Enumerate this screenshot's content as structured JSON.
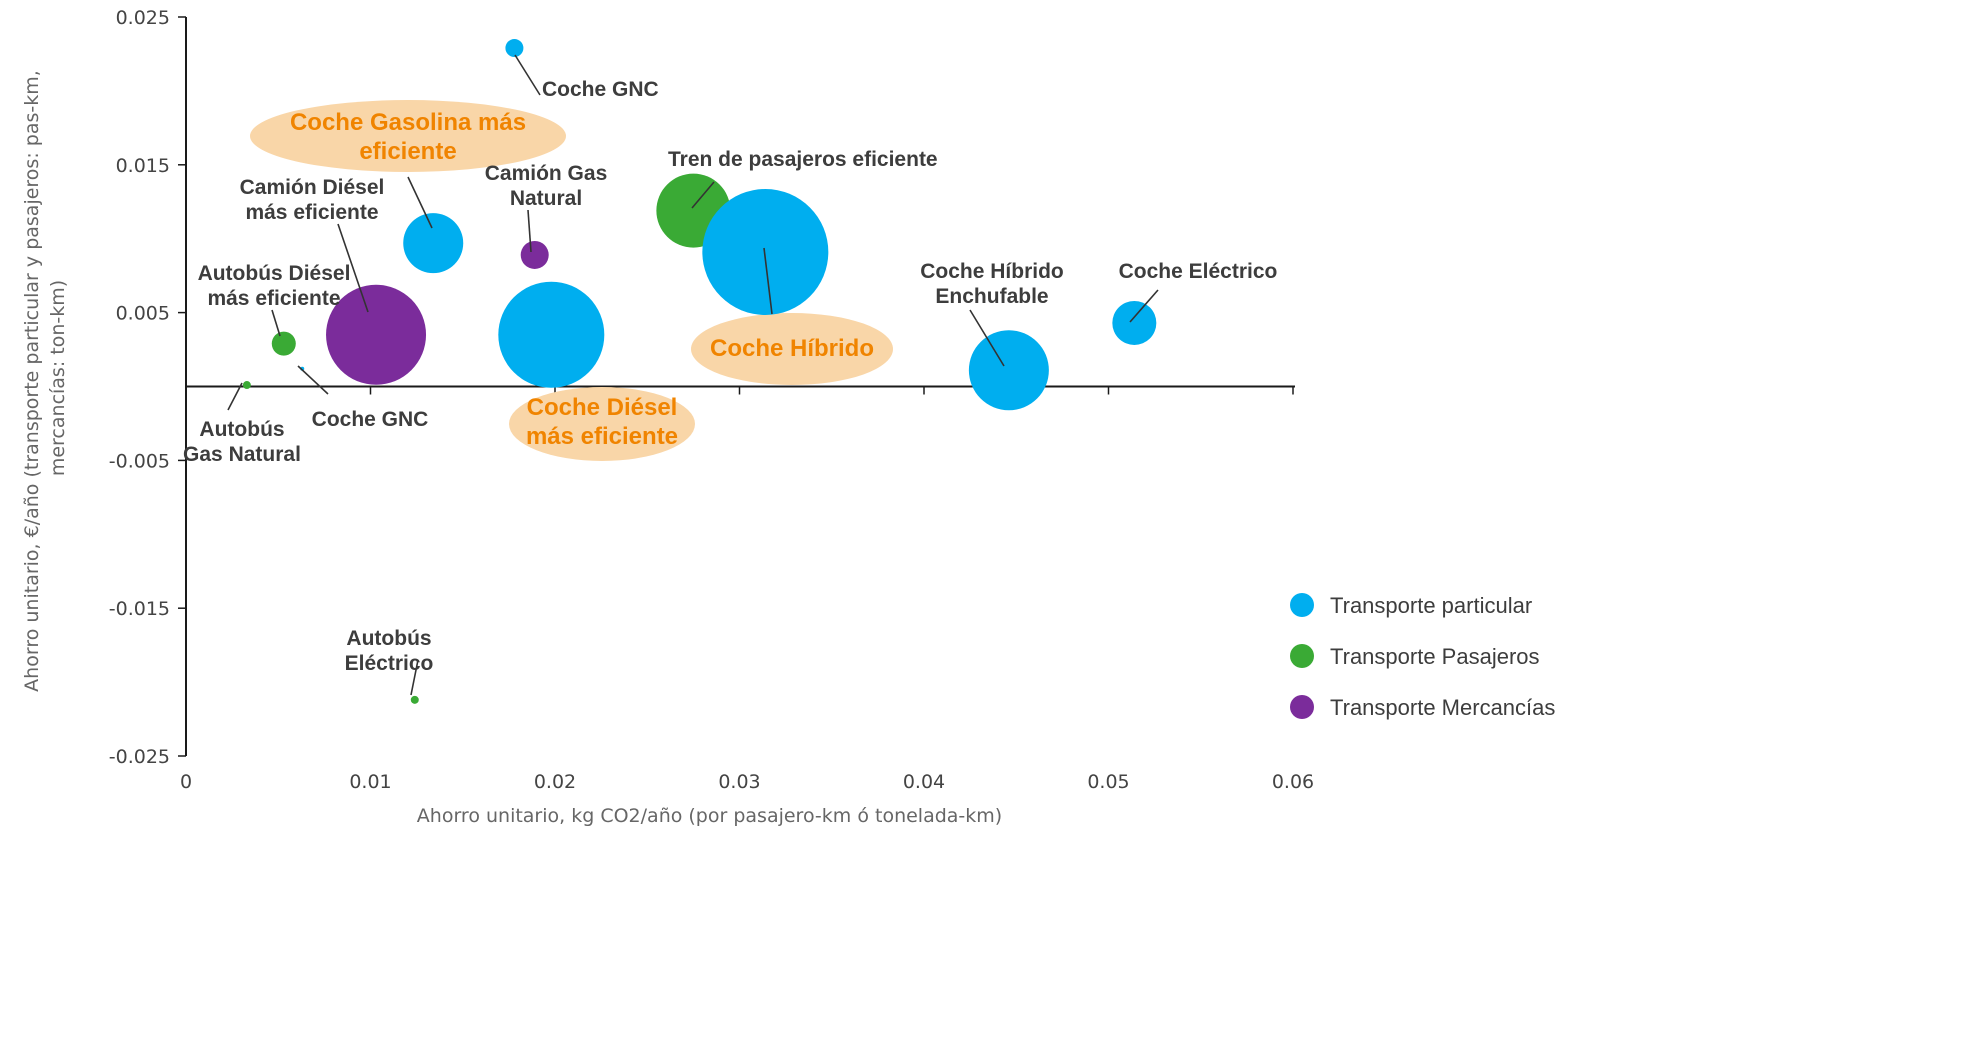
{
  "chart_data": {
    "type": "bubble",
    "xlabel": "Ahorro unitario, kg CO2/año (por pasajero-km ó tonelada-km)",
    "ylabel_lines": [
      "Ahorro unitario, €/año (transporte particular y pasajeros: pas-km,",
      "mercancías: ton-km)"
    ],
    "xlim": [
      0,
      0.06
    ],
    "ylim": [
      -0.025,
      0.025
    ],
    "x_ticks": [
      "0",
      "0.01",
      "0.02",
      "0.03",
      "0.04",
      "0.05",
      "0.06"
    ],
    "x_tick_values": [
      0,
      0.01,
      0.02,
      0.03,
      0.04,
      0.05,
      0.06
    ],
    "y_ticks": [
      "0.025",
      "0.015",
      "0.005",
      "-0.005",
      "-0.015",
      "-0.025"
    ],
    "y_tick_values": [
      0.025,
      0.015,
      0.005,
      -0.005,
      -0.015,
      -0.025
    ],
    "colors": {
      "Transporte particular": "#00aeef",
      "Transporte Pasajeros": "#3aaa35",
      "Transporte Mercancías": "#7b2c9b",
      "highlight_fill": "#f9d6a8",
      "highlight_text": "#f08400"
    },
    "legend": {
      "position": "right",
      "entries": [
        "Transporte particular",
        "Transporte Pasajeros",
        "Transporte Mercancías"
      ]
    },
    "points": [
      {
        "label": "Coche GNC",
        "series": "Transporte particular",
        "x": 0.0178,
        "y": 0.0229,
        "size": 9
      },
      {
        "label": "Coche Gasolina más eficiente",
        "series": "Transporte particular",
        "x": 0.0134,
        "y": 0.0097,
        "size": 30
      },
      {
        "label": "Camión Gas Natural",
        "series": "Transporte Mercancías",
        "x": 0.0189,
        "y": 0.0089,
        "size": 14
      },
      {
        "label": "Tren de pasajeros eficiente",
        "series": "Transporte Pasajeros",
        "x": 0.0275,
        "y": 0.0119,
        "size": 37
      },
      {
        "label": "Coche Híbrido",
        "series": "Transporte particular",
        "x": 0.0314,
        "y": 0.0091,
        "size": 63
      },
      {
        "label": "Camión Diésel más eficiente",
        "series": "Transporte Mercancías",
        "x": 0.0103,
        "y": 0.0035,
        "size": 50
      },
      {
        "label": "Coche Diésel más eficiente",
        "series": "Transporte particular",
        "x": 0.0198,
        "y": 0.0035,
        "size": 53
      },
      {
        "label": "Autobús Diésel más eficiente",
        "series": "Transporte Pasajeros",
        "x": 0.0053,
        "y": 0.0029,
        "size": 12
      },
      {
        "label": "Coche Híbrido Enchufable",
        "series": "Transporte particular",
        "x": 0.0446,
        "y": 0.0011,
        "size": 40
      },
      {
        "label": "Coche Eléctrico",
        "series": "Transporte particular",
        "x": 0.0514,
        "y": 0.0043,
        "size": 22
      },
      {
        "label": "Autobús Gas Natural",
        "series": "Transporte Pasajeros",
        "x": 0.0033,
        "y": 0.0001,
        "size": 4
      },
      {
        "label": "Coche GNC",
        "series": "Transporte particular",
        "x": 0.0063,
        "y": 0.0012,
        "size": 2
      },
      {
        "label": "Autobús Eléctrico",
        "series": "Transporte Pasajeros",
        "x": 0.0124,
        "y": -0.0212,
        "size": 4
      }
    ],
    "labels": [
      {
        "lines": [
          "Coche GNC"
        ],
        "highlight": false
      },
      {
        "lines": [
          "Coche Gasolina más",
          "eficiente"
        ],
        "highlight": true
      },
      {
        "lines": [
          "Camión Gas",
          "Natural"
        ],
        "highlight": false
      },
      {
        "lines": [
          "Tren de pasajeros eficiente"
        ],
        "highlight": false
      },
      {
        "lines": [
          "Coche Híbrido"
        ],
        "highlight": true
      },
      {
        "lines": [
          "Camión Diésel",
          "más eficiente"
        ],
        "highlight": false
      },
      {
        "lines": [
          "Coche Diésel",
          "más eficiente"
        ],
        "highlight": true
      },
      {
        "lines": [
          "Autobús Diésel",
          "más eficiente"
        ],
        "highlight": false
      },
      {
        "lines": [
          "Coche Híbrido",
          "Enchufable"
        ],
        "highlight": false
      },
      {
        "lines": [
          "Coche Eléctrico"
        ],
        "highlight": false
      },
      {
        "lines": [
          "Autobús",
          "Gas Natural"
        ],
        "highlight": false
      },
      {
        "lines": [
          "Coche GNC"
        ],
        "highlight": false
      },
      {
        "lines": [
          "Autobús",
          "Eléctrico"
        ],
        "highlight": false
      }
    ]
  }
}
